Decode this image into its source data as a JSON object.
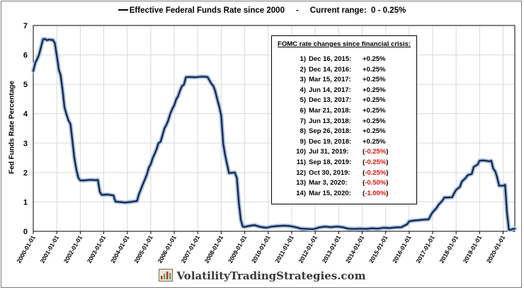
{
  "legend": {
    "series_name": "Effective Federal Funds Rate since 2000",
    "separator": "-",
    "range_text": "Current range:  0 - 0.25%"
  },
  "footer": {
    "site": "VolatilityTradingStrategies.com",
    "logo_icon": "chart-logo-icon"
  },
  "fomc_box": {
    "title": "FOMC rate changes since financial crisis:",
    "rows": [
      {
        "num": "1)",
        "date": "Dec 16, 2015:",
        "change": "+0.25%",
        "negative": false
      },
      {
        "num": "2)",
        "date": "Dec 14, 2016:",
        "change": "+0.25%",
        "negative": false
      },
      {
        "num": "3)",
        "date": "Mar 15, 2017:",
        "change": "+0.25%",
        "negative": false
      },
      {
        "num": "4)",
        "date": "Jun 14, 2017:",
        "change": "+0.25%",
        "negative": false
      },
      {
        "num": "5)",
        "date": "Dec 13, 2017:",
        "change": "+0.25%",
        "negative": false
      },
      {
        "num": "6)",
        "date": "Mar 21, 2018:",
        "change": "+0.25%",
        "negative": false
      },
      {
        "num": "7)",
        "date": "Jun 13, 2018:",
        "change": "+0.25%",
        "negative": false
      },
      {
        "num": "8)",
        "date": "Sep 26, 2018:",
        "change": "+0.25%",
        "negative": false
      },
      {
        "num": "9)",
        "date": "Dec 19, 2018:",
        "change": "+0.25%",
        "negative": false
      },
      {
        "num": "10)",
        "date": "Jul 31, 2019:",
        "change": "-0.25%",
        "negative": true
      },
      {
        "num": "11)",
        "date": "Sep 18, 2019:",
        "change": "-0.25%",
        "negative": true
      },
      {
        "num": "12)",
        "date": "Oct 30, 2019:",
        "change": "-0.25%",
        "negative": true
      },
      {
        "num": "13)",
        "date": "Mar 3, 2020:",
        "change": "-0.50%",
        "negative": true
      },
      {
        "num": "14)",
        "date": "Mar 15, 2020:",
        "change": "-1.00%",
        "negative": true
      }
    ]
  },
  "chart_data": {
    "type": "line",
    "title": "",
    "xlabel": "",
    "ylabel": "Fed Funds Rate Percentage",
    "ylim": [
      0,
      7
    ],
    "yticks": [
      0,
      1,
      2,
      3,
      4,
      5,
      6,
      7
    ],
    "xlim": [
      "2000-01-01",
      "2020-07-01"
    ],
    "xticks": [
      "2000-01-01",
      "2001-01-01",
      "2002-01-01",
      "2003-01-01",
      "2004-01-01",
      "2005-01-01",
      "2006-01-01",
      "2007-01-01",
      "2008-01-01",
      "2009-01-01",
      "2010-01-01",
      "2011-01-01",
      "2012-01-01",
      "2013-01-01",
      "2014-01-01",
      "2015-01-01",
      "2016-01-01",
      "2017-01-01",
      "2018-01-01",
      "2019-01-01",
      "2020-01-01"
    ],
    "grid": true,
    "colors": {
      "line": "#1a2a4a",
      "glow": "#a9c4e6",
      "grid": "#d9d9d9",
      "negative": "#e01010"
    },
    "series": [
      {
        "name": "Effective Federal Funds Rate since 2000",
        "points": [
          [
            "2000-01-01",
            5.45
          ],
          [
            "2000-02-01",
            5.73
          ],
          [
            "2000-03-01",
            5.85
          ],
          [
            "2000-04-01",
            6.02
          ],
          [
            "2000-05-01",
            6.27
          ],
          [
            "2000-06-01",
            6.53
          ],
          [
            "2000-07-01",
            6.54
          ],
          [
            "2000-08-01",
            6.5
          ],
          [
            "2000-09-01",
            6.52
          ],
          [
            "2000-10-01",
            6.51
          ],
          [
            "2000-11-01",
            6.51
          ],
          [
            "2000-12-01",
            6.4
          ],
          [
            "2001-01-01",
            5.98
          ],
          [
            "2001-02-01",
            5.49
          ],
          [
            "2001-03-01",
            5.31
          ],
          [
            "2001-04-01",
            4.8
          ],
          [
            "2001-05-01",
            4.21
          ],
          [
            "2001-06-01",
            3.97
          ],
          [
            "2001-07-01",
            3.77
          ],
          [
            "2001-08-01",
            3.65
          ],
          [
            "2001-09-01",
            3.07
          ],
          [
            "2001-10-01",
            2.49
          ],
          [
            "2001-11-01",
            2.09
          ],
          [
            "2001-12-01",
            1.82
          ],
          [
            "2002-01-01",
            1.73
          ],
          [
            "2002-03-01",
            1.73
          ],
          [
            "2002-06-01",
            1.75
          ],
          [
            "2002-09-01",
            1.74
          ],
          [
            "2002-10-01",
            1.75
          ],
          [
            "2002-11-01",
            1.34
          ],
          [
            "2002-12-01",
            1.24
          ],
          [
            "2003-03-01",
            1.25
          ],
          [
            "2003-06-01",
            1.22
          ],
          [
            "2003-07-01",
            1.01
          ],
          [
            "2003-12-01",
            0.98
          ],
          [
            "2004-03-01",
            1.0
          ],
          [
            "2004-06-01",
            1.03
          ],
          [
            "2004-07-01",
            1.26
          ],
          [
            "2004-08-01",
            1.43
          ],
          [
            "2004-09-01",
            1.61
          ],
          [
            "2004-10-01",
            1.76
          ],
          [
            "2004-11-01",
            1.93
          ],
          [
            "2004-12-01",
            2.16
          ],
          [
            "2005-01-01",
            2.28
          ],
          [
            "2005-02-01",
            2.5
          ],
          [
            "2005-03-01",
            2.63
          ],
          [
            "2005-04-01",
            2.79
          ],
          [
            "2005-05-01",
            3.0
          ],
          [
            "2005-06-01",
            3.04
          ],
          [
            "2005-07-01",
            3.26
          ],
          [
            "2005-08-01",
            3.5
          ],
          [
            "2005-09-01",
            3.62
          ],
          [
            "2005-10-01",
            3.78
          ],
          [
            "2005-11-01",
            4.0
          ],
          [
            "2005-12-01",
            4.16
          ],
          [
            "2006-01-01",
            4.29
          ],
          [
            "2006-02-01",
            4.49
          ],
          [
            "2006-03-01",
            4.59
          ],
          [
            "2006-04-01",
            4.79
          ],
          [
            "2006-05-01",
            4.94
          ],
          [
            "2006-06-01",
            4.99
          ],
          [
            "2006-07-01",
            5.24
          ],
          [
            "2006-08-01",
            5.25
          ],
          [
            "2006-12-01",
            5.24
          ],
          [
            "2007-03-01",
            5.26
          ],
          [
            "2007-06-01",
            5.25
          ],
          [
            "2007-08-01",
            5.02
          ],
          [
            "2007-09-01",
            4.94
          ],
          [
            "2007-10-01",
            4.76
          ],
          [
            "2007-11-01",
            4.49
          ],
          [
            "2007-12-01",
            4.24
          ],
          [
            "2008-01-01",
            3.94
          ],
          [
            "2008-02-01",
            2.98
          ],
          [
            "2008-03-01",
            2.61
          ],
          [
            "2008-04-01",
            2.28
          ],
          [
            "2008-05-01",
            1.98
          ],
          [
            "2008-08-01",
            2.0
          ],
          [
            "2008-09-01",
            1.81
          ],
          [
            "2008-10-01",
            0.97
          ],
          [
            "2008-11-01",
            0.39
          ],
          [
            "2008-12-01",
            0.16
          ],
          [
            "2009-01-01",
            0.15
          ],
          [
            "2009-03-01",
            0.18
          ],
          [
            "2009-06-01",
            0.21
          ],
          [
            "2009-09-01",
            0.15
          ],
          [
            "2009-12-01",
            0.12
          ],
          [
            "2010-03-01",
            0.16
          ],
          [
            "2010-06-01",
            0.18
          ],
          [
            "2010-09-01",
            0.19
          ],
          [
            "2010-12-01",
            0.18
          ],
          [
            "2011-03-01",
            0.14
          ],
          [
            "2011-06-01",
            0.09
          ],
          [
            "2011-09-01",
            0.08
          ],
          [
            "2011-12-01",
            0.07
          ],
          [
            "2012-03-01",
            0.13
          ],
          [
            "2012-06-01",
            0.16
          ],
          [
            "2012-09-01",
            0.14
          ],
          [
            "2012-12-01",
            0.16
          ],
          [
            "2013-03-01",
            0.14
          ],
          [
            "2013-06-01",
            0.09
          ],
          [
            "2013-09-01",
            0.08
          ],
          [
            "2013-12-01",
            0.09
          ],
          [
            "2014-03-01",
            0.08
          ],
          [
            "2014-06-01",
            0.1
          ],
          [
            "2014-09-01",
            0.09
          ],
          [
            "2014-12-01",
            0.12
          ],
          [
            "2015-03-01",
            0.11
          ],
          [
            "2015-06-01",
            0.13
          ],
          [
            "2015-09-01",
            0.14
          ],
          [
            "2015-12-01",
            0.24
          ],
          [
            "2016-01-01",
            0.34
          ],
          [
            "2016-03-01",
            0.36
          ],
          [
            "2016-06-01",
            0.38
          ],
          [
            "2016-09-01",
            0.4
          ],
          [
            "2016-11-01",
            0.41
          ],
          [
            "2016-12-01",
            0.54
          ],
          [
            "2017-01-01",
            0.65
          ],
          [
            "2017-03-01",
            0.79
          ],
          [
            "2017-04-01",
            0.9
          ],
          [
            "2017-06-01",
            1.04
          ],
          [
            "2017-07-01",
            1.15
          ],
          [
            "2017-09-01",
            1.15
          ],
          [
            "2017-11-01",
            1.16
          ],
          [
            "2017-12-01",
            1.3
          ],
          [
            "2018-01-01",
            1.41
          ],
          [
            "2018-03-01",
            1.51
          ],
          [
            "2018-04-01",
            1.69
          ],
          [
            "2018-06-01",
            1.82
          ],
          [
            "2018-07-01",
            1.91
          ],
          [
            "2018-09-01",
            1.95
          ],
          [
            "2018-10-01",
            2.19
          ],
          [
            "2018-12-01",
            2.27
          ],
          [
            "2019-01-01",
            2.4
          ],
          [
            "2019-03-01",
            2.41
          ],
          [
            "2019-05-01",
            2.39
          ],
          [
            "2019-06-01",
            2.38
          ],
          [
            "2019-07-01",
            2.4
          ],
          [
            "2019-08-01",
            2.13
          ],
          [
            "2019-09-01",
            2.04
          ],
          [
            "2019-10-01",
            1.83
          ],
          [
            "2019-11-01",
            1.55
          ],
          [
            "2019-12-01",
            1.55
          ],
          [
            "2020-01-01",
            1.55
          ],
          [
            "2020-02-01",
            1.58
          ],
          [
            "2020-03-01",
            0.65
          ],
          [
            "2020-04-01",
            0.05
          ],
          [
            "2020-05-01",
            0.05
          ],
          [
            "2020-06-01",
            0.08
          ],
          [
            "2020-07-01",
            0.09
          ]
        ]
      }
    ]
  }
}
